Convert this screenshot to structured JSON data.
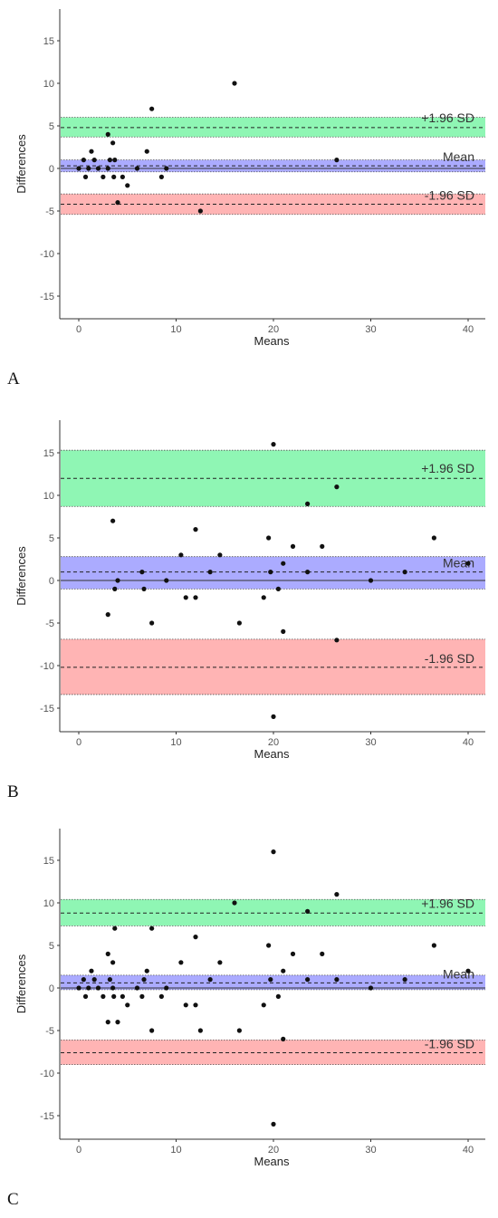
{
  "chart_data": [
    {
      "panel": "A",
      "type": "scatter",
      "xlabel": "Means",
      "ylabel": "Differences",
      "xlim": [
        -1.5,
        42
      ],
      "ylim": [
        -17.5,
        18.5
      ],
      "xticks": [
        0,
        10,
        20,
        30,
        40
      ],
      "yticks": [
        -15,
        -10,
        -5,
        0,
        5,
        10,
        15
      ],
      "grid": false,
      "bands": [
        {
          "label": "+1.96 SD",
          "value": 4.8,
          "lower": 3.7,
          "upper": 6.0,
          "color": "#33ee77"
        },
        {
          "label": "Mean",
          "value": 0.3,
          "lower": -0.4,
          "upper": 1.0,
          "color": "#6666ff"
        },
        {
          "label": "-1.96 SD",
          "value": -4.2,
          "lower": -5.4,
          "upper": -3.0,
          "color": "#ff7777"
        }
      ],
      "points": {
        "x": [
          0,
          0.5,
          0.7,
          1,
          1.3,
          1.6,
          2,
          2.5,
          3,
          3,
          3.2,
          3.5,
          3.6,
          3.7,
          4,
          4.5,
          5,
          6,
          7,
          7.5,
          8.5,
          9,
          12.5,
          16,
          26.5
        ],
        "y": [
          0,
          1,
          -1,
          0,
          2,
          1,
          0,
          -1,
          0,
          4,
          1,
          3,
          -1,
          1,
          -4,
          -1,
          -2,
          0,
          2,
          7,
          -1,
          0,
          -5,
          10,
          1
        ]
      }
    },
    {
      "panel": "B",
      "type": "scatter",
      "xlabel": "Means",
      "ylabel": "Differences",
      "xlim": [
        -1.5,
        42
      ],
      "ylim": [
        -17.5,
        18.5
      ],
      "xticks": [
        0,
        10,
        20,
        30,
        40
      ],
      "yticks": [
        -15,
        -10,
        -5,
        0,
        5,
        10,
        15
      ],
      "grid": false,
      "bands": [
        {
          "label": "+1.96 SD",
          "value": 12,
          "lower": 8.7,
          "upper": 15.3,
          "color": "#33ee77"
        },
        {
          "label": "Mean",
          "value": 1,
          "lower": -1.0,
          "upper": 2.8,
          "color": "#6666ff"
        },
        {
          "label": "-1.96 SD",
          "value": -10.2,
          "lower": -13.4,
          "upper": -6.9,
          "color": "#ff7777"
        }
      ],
      "points": {
        "x": [
          3,
          3.5,
          3.7,
          4,
          6.5,
          6.7,
          7.5,
          9,
          10.5,
          11,
          12,
          12,
          13.5,
          14.5,
          16.5,
          19,
          19.5,
          19.7,
          20,
          20,
          20.5,
          21,
          21,
          22,
          23.5,
          23.5,
          25,
          26.5,
          26.5,
          30,
          33.5,
          36.5,
          40
        ],
        "y": [
          -4,
          7,
          -1,
          0,
          1,
          -1,
          -5,
          0,
          3,
          -2,
          6,
          -2,
          1,
          3,
          -5,
          -2,
          5,
          1,
          16,
          -16,
          -1,
          2,
          -6,
          4,
          9,
          1,
          4,
          11,
          -7,
          0,
          1,
          5,
          2
        ]
      }
    },
    {
      "panel": "C",
      "type": "scatter",
      "xlabel": "Means",
      "ylabel": "Differences",
      "xlim": [
        -1.5,
        42
      ],
      "ylim": [
        -17.5,
        18.5
      ],
      "xticks": [
        0,
        10,
        20,
        30,
        40
      ],
      "yticks": [
        -15,
        -10,
        -5,
        0,
        5,
        10,
        15
      ],
      "grid": false,
      "bands": [
        {
          "label": "+1.96 SD",
          "value": 8.8,
          "lower": 7.3,
          "upper": 10.4,
          "color": "#33ee77"
        },
        {
          "label": "Mean",
          "value": 0.6,
          "lower": -0.2,
          "upper": 1.5,
          "color": "#6666ff"
        },
        {
          "label": "-1.96 SD",
          "value": -7.6,
          "lower": -9.0,
          "upper": -6.1,
          "color": "#ff7777"
        }
      ],
      "points": {
        "x": [
          0,
          0.5,
          0.7,
          1,
          1.3,
          1.6,
          2,
          2.5,
          3,
          3,
          3.2,
          3.5,
          3.6,
          3.7,
          4,
          4.5,
          5,
          6,
          7,
          7.5,
          8.5,
          9,
          12.5,
          16,
          26.5,
          3.5,
          6.5,
          6.7,
          7.5,
          10.5,
          11,
          12,
          12,
          13.5,
          14.5,
          16.5,
          19,
          19.5,
          19.7,
          20,
          20,
          20.5,
          21,
          21,
          22,
          23.5,
          23.5,
          25,
          26.5,
          30,
          33.5,
          36.5,
          40
        ],
        "y": [
          0,
          1,
          -1,
          0,
          2,
          1,
          0,
          -1,
          -4,
          4,
          1,
          3,
          -1,
          7,
          -4,
          -1,
          -2,
          0,
          2,
          7,
          -1,
          0,
          -5,
          10,
          1,
          0,
          -1,
          1,
          -5,
          3,
          -2,
          6,
          -2,
          1,
          3,
          -5,
          -2,
          5,
          1,
          16,
          -16,
          -1,
          2,
          -6,
          4,
          9,
          1,
          4,
          11,
          0,
          1,
          5,
          2
        ]
      }
    }
  ]
}
